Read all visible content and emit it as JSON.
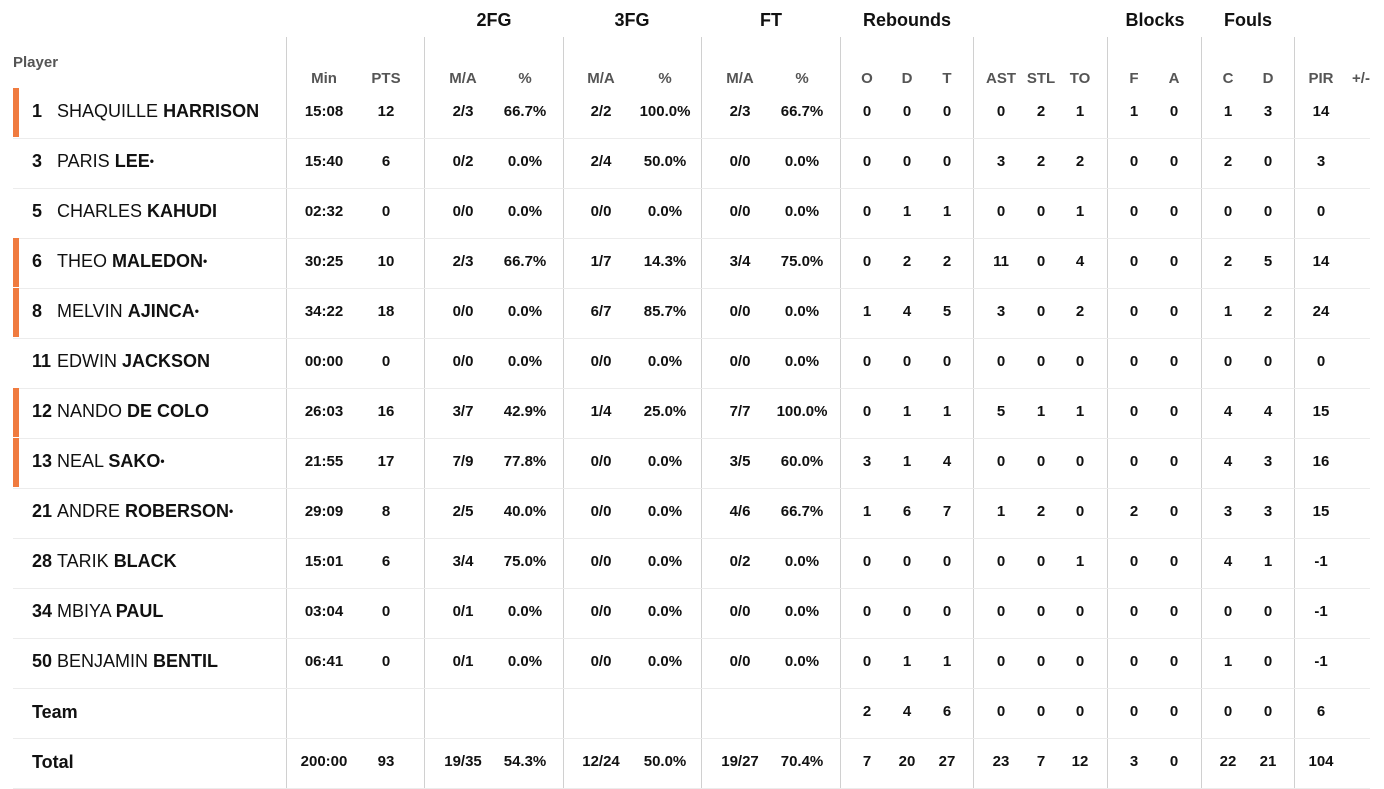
{
  "groups": [
    {
      "id": "2fg",
      "label": "2FG"
    },
    {
      "id": "3fg",
      "label": "3FG"
    },
    {
      "id": "ft",
      "label": "FT"
    },
    {
      "id": "rebounds",
      "label": "Rebounds"
    },
    {
      "id": "blocks",
      "label": "Blocks"
    },
    {
      "id": "fouls",
      "label": "Fouls"
    }
  ],
  "player_header": "Player",
  "columns": [
    {
      "id": "min",
      "label": "Min"
    },
    {
      "id": "pts",
      "label": "PTS"
    },
    {
      "id": "fg2_ma",
      "label": "M/A"
    },
    {
      "id": "fg2_pct",
      "label": "%"
    },
    {
      "id": "fg3_ma",
      "label": "M/A"
    },
    {
      "id": "fg3_pct",
      "label": "%"
    },
    {
      "id": "ft_ma",
      "label": "M/A"
    },
    {
      "id": "ft_pct",
      "label": "%"
    },
    {
      "id": "reb_o",
      "label": "O"
    },
    {
      "id": "reb_d",
      "label": "D"
    },
    {
      "id": "reb_t",
      "label": "T"
    },
    {
      "id": "ast",
      "label": "AST"
    },
    {
      "id": "stl",
      "label": "STL"
    },
    {
      "id": "to",
      "label": "TO"
    },
    {
      "id": "blk_f",
      "label": "F"
    },
    {
      "id": "blk_a",
      "label": "A"
    },
    {
      "id": "foul_c",
      "label": "C"
    },
    {
      "id": "foul_d",
      "label": "D"
    },
    {
      "id": "pir",
      "label": "PIR"
    },
    {
      "id": "pm",
      "label": "+/-"
    }
  ],
  "players": [
    {
      "number": "1",
      "first": "SHAQUILLE",
      "last": "HARRISON",
      "dot": "",
      "starter": true,
      "stats": [
        "15:08",
        "12",
        "2/3",
        "66.7%",
        "2/2",
        "100.0%",
        "2/3",
        "66.7%",
        "0",
        "0",
        "0",
        "0",
        "2",
        "1",
        "1",
        "0",
        "1",
        "3",
        "14",
        ""
      ]
    },
    {
      "number": "3",
      "first": "PARIS",
      "last": "LEE",
      "dot": "•",
      "starter": false,
      "stats": [
        "15:40",
        "6",
        "0/2",
        "0.0%",
        "2/4",
        "50.0%",
        "0/0",
        "0.0%",
        "0",
        "0",
        "0",
        "3",
        "2",
        "2",
        "0",
        "0",
        "2",
        "0",
        "3",
        ""
      ]
    },
    {
      "number": "5",
      "first": "CHARLES",
      "last": "KAHUDI",
      "dot": "",
      "starter": false,
      "stats": [
        "02:32",
        "0",
        "0/0",
        "0.0%",
        "0/0",
        "0.0%",
        "0/0",
        "0.0%",
        "0",
        "1",
        "1",
        "0",
        "0",
        "1",
        "0",
        "0",
        "0",
        "0",
        "0",
        ""
      ]
    },
    {
      "number": "6",
      "first": "THEO",
      "last": "MALEDON",
      "dot": "•",
      "starter": true,
      "stats": [
        "30:25",
        "10",
        "2/3",
        "66.7%",
        "1/7",
        "14.3%",
        "3/4",
        "75.0%",
        "0",
        "2",
        "2",
        "11",
        "0",
        "4",
        "0",
        "0",
        "2",
        "5",
        "14",
        ""
      ]
    },
    {
      "number": "8",
      "first": "MELVIN",
      "last": "AJINCA",
      "dot": "•",
      "starter": true,
      "stats": [
        "34:22",
        "18",
        "0/0",
        "0.0%",
        "6/7",
        "85.7%",
        "0/0",
        "0.0%",
        "1",
        "4",
        "5",
        "3",
        "0",
        "2",
        "0",
        "0",
        "1",
        "2",
        "24",
        ""
      ]
    },
    {
      "number": "11",
      "first": "EDWIN",
      "last": "JACKSON",
      "dot": "",
      "starter": false,
      "stats": [
        "00:00",
        "0",
        "0/0",
        "0.0%",
        "0/0",
        "0.0%",
        "0/0",
        "0.0%",
        "0",
        "0",
        "0",
        "0",
        "0",
        "0",
        "0",
        "0",
        "0",
        "0",
        "0",
        ""
      ]
    },
    {
      "number": "12",
      "first": "NANDO",
      "last": "DE COLO",
      "dot": "",
      "starter": true,
      "stats": [
        "26:03",
        "16",
        "3/7",
        "42.9%",
        "1/4",
        "25.0%",
        "7/7",
        "100.0%",
        "0",
        "1",
        "1",
        "5",
        "1",
        "1",
        "0",
        "0",
        "4",
        "4",
        "15",
        ""
      ]
    },
    {
      "number": "13",
      "first": "NEAL",
      "last": "SAKO",
      "dot": "•",
      "starter": true,
      "stats": [
        "21:55",
        "17",
        "7/9",
        "77.8%",
        "0/0",
        "0.0%",
        "3/5",
        "60.0%",
        "3",
        "1",
        "4",
        "0",
        "0",
        "0",
        "0",
        "0",
        "4",
        "3",
        "16",
        ""
      ]
    },
    {
      "number": "21",
      "first": "ANDRE",
      "last": "ROBERSON",
      "dot": "•",
      "starter": false,
      "stats": [
        "29:09",
        "8",
        "2/5",
        "40.0%",
        "0/0",
        "0.0%",
        "4/6",
        "66.7%",
        "1",
        "6",
        "7",
        "1",
        "2",
        "0",
        "2",
        "0",
        "3",
        "3",
        "15",
        ""
      ]
    },
    {
      "number": "28",
      "first": "TARIK",
      "last": "BLACK",
      "dot": "",
      "starter": false,
      "stats": [
        "15:01",
        "6",
        "3/4",
        "75.0%",
        "0/0",
        "0.0%",
        "0/2",
        "0.0%",
        "0",
        "0",
        "0",
        "0",
        "0",
        "1",
        "0",
        "0",
        "4",
        "1",
        "-1",
        ""
      ]
    },
    {
      "number": "34",
      "first": "MBIYA",
      "last": "PAUL",
      "dot": "",
      "starter": false,
      "stats": [
        "03:04",
        "0",
        "0/1",
        "0.0%",
        "0/0",
        "0.0%",
        "0/0",
        "0.0%",
        "0",
        "0",
        "0",
        "0",
        "0",
        "0",
        "0",
        "0",
        "0",
        "0",
        "-1",
        ""
      ]
    },
    {
      "number": "50",
      "first": "BENJAMIN",
      "last": "BENTIL",
      "dot": "",
      "starter": false,
      "stats": [
        "06:41",
        "0",
        "0/1",
        "0.0%",
        "0/0",
        "0.0%",
        "0/0",
        "0.0%",
        "0",
        "1",
        "1",
        "0",
        "0",
        "0",
        "0",
        "0",
        "1",
        "0",
        "-1",
        ""
      ]
    }
  ],
  "team_row": {
    "label": "Team",
    "stats": [
      "",
      "",
      "",
      "",
      "",
      "",
      "",
      "",
      "2",
      "4",
      "6",
      "0",
      "0",
      "0",
      "0",
      "0",
      "0",
      "0",
      "6",
      ""
    ]
  },
  "total_row": {
    "label": "Total",
    "stats": [
      "200:00",
      "93",
      "19/35",
      "54.3%",
      "12/24",
      "50.0%",
      "19/27",
      "70.4%",
      "7",
      "20",
      "27",
      "23",
      "7",
      "12",
      "3",
      "0",
      "22",
      "21",
      "104",
      ""
    ]
  },
  "colors": {
    "starter_bar": "#f07b3f",
    "header_text": "#555555",
    "divider": "#d0d0d0"
  }
}
